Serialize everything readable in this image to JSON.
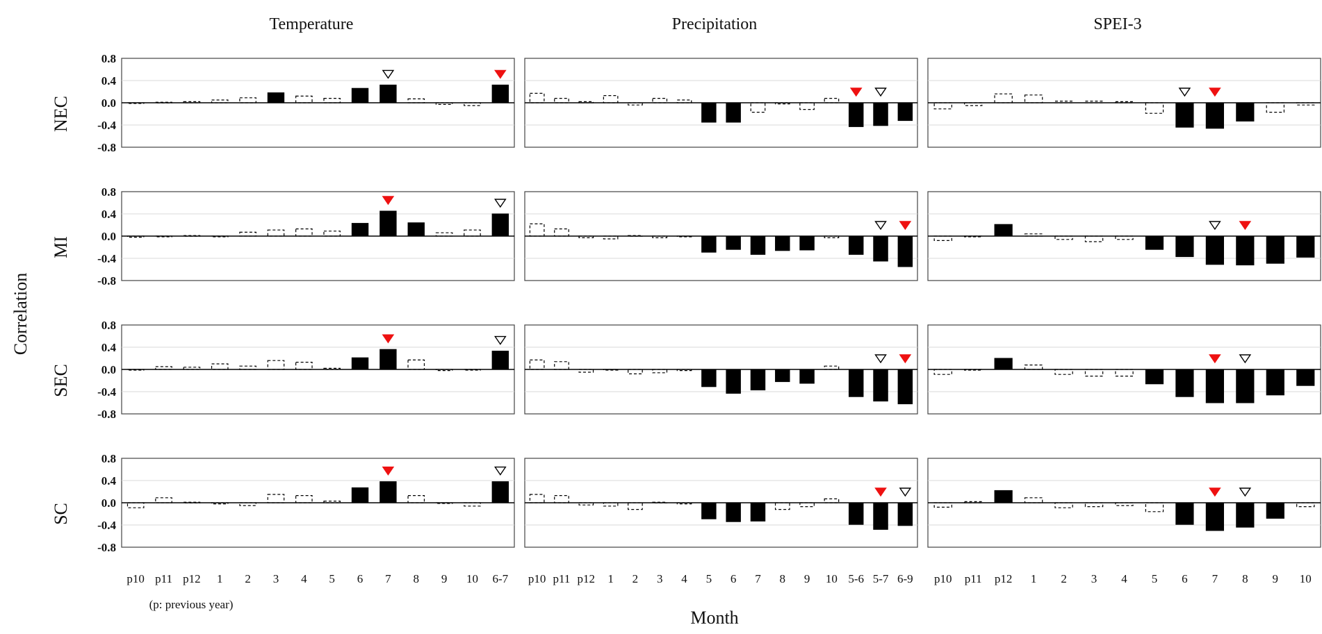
{
  "chart_data": {
    "type": "bar",
    "figure_ylabel": "Correlation",
    "figure_xlabel": "Month",
    "note": "(p: previous year)",
    "ylim": [
      -0.8,
      0.8
    ],
    "yticks": [
      "0.8",
      "0.4",
      "0.0",
      "-0.4",
      "-0.8"
    ],
    "gridlines": [
      0.4,
      -0.4
    ],
    "rows": [
      "NEC",
      "MI",
      "SEC",
      "SC"
    ],
    "columns": [
      {
        "title": "Temperature",
        "categories": [
          "p10",
          "p11",
          "p12",
          "1",
          "2",
          "3",
          "4",
          "5",
          "6",
          "7",
          "8",
          "9",
          "10",
          "6-7"
        ],
        "panels": [
          {
            "region": "NEC",
            "values": [
              -0.01,
              0.01,
              0.02,
              0.05,
              0.09,
              0.18,
              0.12,
              0.08,
              0.26,
              0.32,
              0.07,
              -0.03,
              -0.05,
              0.32
            ],
            "significant": [
              false,
              false,
              false,
              false,
              false,
              true,
              false,
              false,
              true,
              true,
              false,
              false,
              false,
              true
            ],
            "markers": [
              {
                "category": "7",
                "style": "open"
              },
              {
                "category": "6-7",
                "style": "filled"
              }
            ]
          },
          {
            "region": "MI",
            "values": [
              -0.02,
              -0.01,
              0.01,
              -0.01,
              0.07,
              0.11,
              0.13,
              0.09,
              0.23,
              0.45,
              0.24,
              0.06,
              0.11,
              0.4
            ],
            "significant": [
              false,
              false,
              false,
              false,
              false,
              false,
              false,
              false,
              true,
              true,
              true,
              false,
              false,
              true
            ],
            "markers": [
              {
                "category": "7",
                "style": "filled"
              },
              {
                "category": "6-7",
                "style": "open"
              }
            ]
          },
          {
            "region": "SEC",
            "values": [
              -0.01,
              0.05,
              0.04,
              0.1,
              0.06,
              0.16,
              0.13,
              0.02,
              0.21,
              0.36,
              0.17,
              -0.02,
              -0.01,
              0.33
            ],
            "significant": [
              false,
              false,
              false,
              false,
              false,
              false,
              false,
              false,
              true,
              true,
              false,
              false,
              false,
              true
            ],
            "markers": [
              {
                "category": "7",
                "style": "filled"
              },
              {
                "category": "6-7",
                "style": "open"
              }
            ]
          },
          {
            "region": "SC",
            "values": [
              -0.09,
              0.09,
              0.01,
              -0.02,
              -0.05,
              0.15,
              0.13,
              0.03,
              0.27,
              0.38,
              0.13,
              -0.01,
              -0.06,
              0.38
            ],
            "significant": [
              false,
              false,
              false,
              false,
              false,
              false,
              false,
              false,
              true,
              true,
              false,
              false,
              false,
              true
            ],
            "markers": [
              {
                "category": "7",
                "style": "filled"
              },
              {
                "category": "6-7",
                "style": "open"
              }
            ]
          }
        ]
      },
      {
        "title": "Precipitation",
        "categories": [
          "p10",
          "p11",
          "p12",
          "1",
          "2",
          "3",
          "4",
          "5",
          "6",
          "7",
          "8",
          "9",
          "10",
          "5-6",
          "5-7",
          "6-9"
        ],
        "panels": [
          {
            "region": "NEC",
            "values": [
              0.17,
              0.08,
              0.02,
              0.13,
              -0.04,
              0.08,
              0.05,
              -0.35,
              -0.35,
              -0.17,
              -0.02,
              -0.12,
              0.08,
              -0.43,
              -0.41,
              -0.32
            ],
            "significant": [
              false,
              false,
              false,
              false,
              false,
              false,
              false,
              true,
              true,
              false,
              false,
              false,
              false,
              true,
              true,
              true
            ],
            "markers": [
              {
                "category": "5-6",
                "style": "filled"
              },
              {
                "category": "5-7",
                "style": "open"
              }
            ]
          },
          {
            "region": "MI",
            "values": [
              0.22,
              0.13,
              -0.03,
              -0.05,
              0.01,
              -0.03,
              0.0,
              -0.29,
              -0.24,
              -0.33,
              -0.26,
              -0.25,
              -0.03,
              -0.33,
              -0.45,
              -0.55
            ],
            "significant": [
              false,
              false,
              false,
              false,
              false,
              false,
              false,
              true,
              true,
              true,
              true,
              true,
              false,
              true,
              true,
              true
            ],
            "markers": [
              {
                "category": "5-7",
                "style": "open"
              },
              {
                "category": "6-9",
                "style": "filled"
              }
            ]
          },
          {
            "region": "SEC",
            "values": [
              0.17,
              0.14,
              -0.05,
              0.0,
              -0.08,
              -0.06,
              -0.02,
              -0.31,
              -0.43,
              -0.37,
              -0.22,
              -0.25,
              0.06,
              -0.49,
              -0.57,
              -0.62
            ],
            "significant": [
              false,
              false,
              false,
              false,
              false,
              false,
              false,
              true,
              true,
              true,
              true,
              true,
              false,
              true,
              true,
              true
            ],
            "markers": [
              {
                "category": "5-7",
                "style": "open"
              },
              {
                "category": "6-9",
                "style": "filled"
              }
            ]
          },
          {
            "region": "SC",
            "values": [
              0.15,
              0.13,
              -0.04,
              -0.06,
              -0.12,
              0.01,
              -0.02,
              -0.29,
              -0.34,
              -0.33,
              -0.12,
              -0.07,
              0.07,
              -0.39,
              -0.48,
              -0.41
            ],
            "significant": [
              false,
              false,
              false,
              false,
              false,
              false,
              false,
              true,
              true,
              true,
              false,
              false,
              false,
              true,
              true,
              true
            ],
            "markers": [
              {
                "category": "5-7",
                "style": "filled"
              },
              {
                "category": "6-9",
                "style": "open"
              }
            ]
          }
        ]
      },
      {
        "title": "SPEI-3",
        "categories": [
          "p10",
          "p11",
          "p12",
          "1",
          "2",
          "3",
          "4",
          "5",
          "6",
          "7",
          "8",
          "9",
          "10"
        ],
        "panels": [
          {
            "region": "NEC",
            "values": [
              -0.11,
              -0.05,
              0.16,
              0.14,
              0.03,
              0.03,
              0.02,
              -0.19,
              -0.44,
              -0.46,
              -0.33,
              -0.17,
              -0.04
            ],
            "significant": [
              false,
              false,
              false,
              false,
              false,
              false,
              false,
              false,
              true,
              true,
              true,
              false,
              false
            ],
            "markers": [
              {
                "category": "6",
                "style": "open"
              },
              {
                "category": "7",
                "style": "filled"
              }
            ]
          },
          {
            "region": "MI",
            "values": [
              -0.08,
              0.0,
              0.21,
              0.04,
              -0.06,
              -0.1,
              -0.06,
              -0.24,
              -0.37,
              -0.51,
              -0.52,
              -0.49,
              -0.38
            ],
            "significant": [
              false,
              false,
              true,
              false,
              false,
              false,
              false,
              true,
              true,
              true,
              true,
              true,
              true
            ],
            "markers": [
              {
                "category": "7",
                "style": "open"
              },
              {
                "category": "8",
                "style": "filled"
              }
            ]
          },
          {
            "region": "SEC",
            "values": [
              -0.09,
              -0.01,
              0.2,
              0.08,
              -0.09,
              -0.12,
              -0.12,
              -0.26,
              -0.49,
              -0.6,
              -0.6,
              -0.46,
              -0.29
            ],
            "significant": [
              false,
              false,
              true,
              false,
              false,
              false,
              false,
              true,
              true,
              true,
              true,
              true,
              true
            ],
            "markers": [
              {
                "category": "7",
                "style": "filled"
              },
              {
                "category": "8",
                "style": "open"
              }
            ]
          },
          {
            "region": "SC",
            "values": [
              -0.08,
              0.02,
              0.22,
              0.09,
              -0.09,
              -0.07,
              -0.05,
              -0.16,
              -0.39,
              -0.5,
              -0.44,
              -0.28,
              -0.07
            ],
            "significant": [
              false,
              false,
              true,
              false,
              false,
              false,
              false,
              false,
              true,
              true,
              true,
              true,
              false
            ],
            "markers": [
              {
                "category": "7",
                "style": "filled"
              },
              {
                "category": "8",
                "style": "open"
              }
            ]
          }
        ]
      }
    ]
  }
}
